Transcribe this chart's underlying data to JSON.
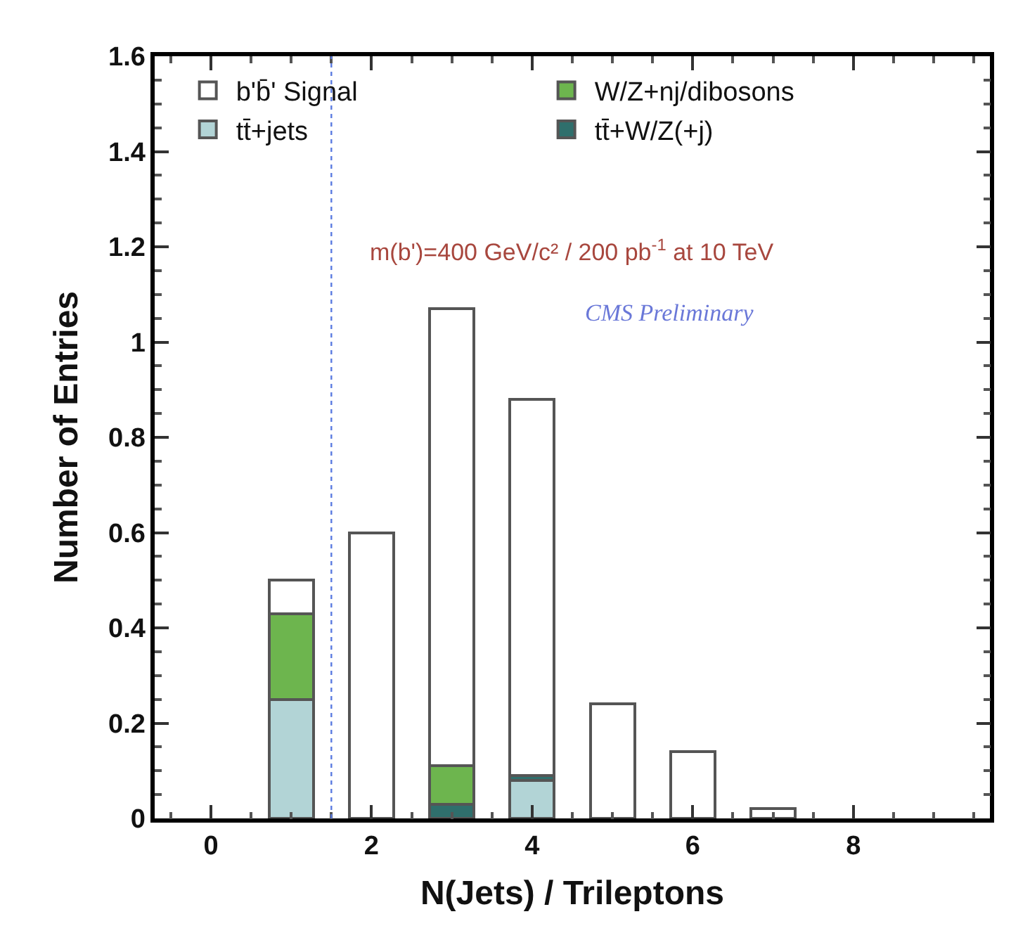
{
  "chart_data": {
    "type": "bar",
    "stacked": true,
    "xlabel": "N(Jets) / Trileptons",
    "ylabel": "Number of Entries",
    "x": [
      1,
      2,
      3,
      4,
      5,
      6,
      7
    ],
    "series": [
      {
        "name": "tt̄+jets",
        "color": "#b2d4d6",
        "values": [
          0.25,
          null,
          null,
          0.08,
          null,
          null,
          null
        ]
      },
      {
        "name": "tt̄+W/Z(+j)",
        "color": "#2f6f6c",
        "values": [
          null,
          null,
          0.03,
          0.01,
          null,
          null,
          null
        ]
      },
      {
        "name": "W/Z+nj/dibosons",
        "color": "#6db54e",
        "values": [
          0.18,
          null,
          0.08,
          null,
          null,
          null,
          null
        ]
      },
      {
        "name": "b'b̄' Signal",
        "color": "#ffffff",
        "values": [
          0.07,
          0.6,
          0.96,
          0.79,
          0.24,
          0.14,
          0.02
        ]
      }
    ],
    "xlim": [
      -0.7,
      9.7
    ],
    "xticks": [
      0,
      2,
      4,
      6,
      8
    ],
    "ylim": [
      0,
      1.6
    ],
    "yticks": [
      0,
      0.2,
      0.4,
      0.6,
      0.8,
      1,
      1.2,
      1.4,
      1.6
    ],
    "ref_lines": [
      {
        "axis": "x",
        "value": 1.5,
        "color": "#5b7be0",
        "line_style": "dotted"
      }
    ],
    "annotations": [
      "m(b')=400 GeV/c² / 200 pb$^{-1}$ at 10 TeV",
      "CMS Preliminary"
    ],
    "legend": "top left"
  }
}
